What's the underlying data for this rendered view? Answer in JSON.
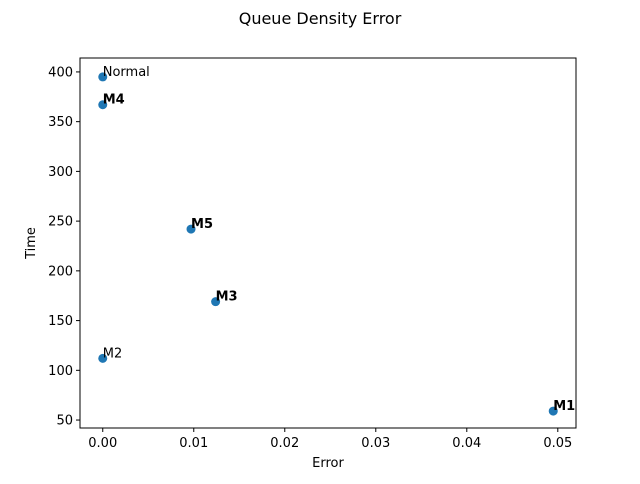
{
  "chart_data": {
    "type": "scatter",
    "title": "Queue Density Error",
    "xlabel": "Error",
    "ylabel": "Time",
    "xlim": [
      -0.0025,
      0.052
    ],
    "ylim": [
      42,
      414
    ],
    "xticks": [
      0.0,
      0.01,
      0.02,
      0.03,
      0.04,
      0.05
    ],
    "xtick_labels": [
      "0.00",
      "0.01",
      "0.02",
      "0.03",
      "0.04",
      "0.05"
    ],
    "yticks": [
      50,
      100,
      150,
      200,
      250,
      300,
      350,
      400
    ],
    "ytick_labels": [
      "50",
      "100",
      "150",
      "200",
      "250",
      "300",
      "350",
      "400"
    ],
    "grid": false,
    "color": "#1f77b4",
    "points": [
      {
        "label": "Normal",
        "x": 0.0,
        "y": 395,
        "bold": false
      },
      {
        "label": "M4",
        "x": 0.0,
        "y": 367,
        "bold": true
      },
      {
        "label": "M5",
        "x": 0.0097,
        "y": 242,
        "bold": true
      },
      {
        "label": "M3",
        "x": 0.0124,
        "y": 169,
        "bold": true
      },
      {
        "label": "M2",
        "x": 0.0,
        "y": 112,
        "bold": false
      },
      {
        "label": "M1",
        "x": 0.0495,
        "y": 59,
        "bold": true
      }
    ]
  }
}
